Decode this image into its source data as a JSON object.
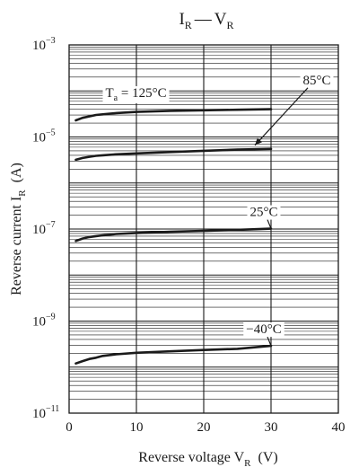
{
  "chart_data": {
    "type": "line",
    "title": {
      "main": "I",
      "main_sub": "R",
      "sep": "—",
      "rest": "V",
      "rest_sub": "R"
    },
    "xlabel": {
      "text": "Reverse voltage  V",
      "sub": "R",
      "unit": "(V)"
    },
    "ylabel": {
      "text": "Reverse current  I",
      "sub": "R",
      "unit": "(A)"
    },
    "xlim": [
      0,
      40
    ],
    "ylim": [
      1e-11,
      0.001
    ],
    "yscale": "log",
    "grid": true,
    "xticks": [
      {
        "value": 0,
        "label": "0"
      },
      {
        "value": 10,
        "label": "10"
      },
      {
        "value": 20,
        "label": "20"
      },
      {
        "value": 30,
        "label": "30"
      },
      {
        "value": 40,
        "label": "40"
      }
    ],
    "yticks": [
      {
        "value": 1e-11,
        "base": "10",
        "exp": "−11"
      },
      {
        "value": 1e-09,
        "base": "10",
        "exp": "−9"
      },
      {
        "value": 1e-07,
        "base": "10",
        "exp": "−7"
      },
      {
        "value": 1e-05,
        "base": "10",
        "exp": "−5"
      },
      {
        "value": 0.001,
        "base": "10",
        "exp": "−3"
      }
    ],
    "series": [
      {
        "name": "125°C",
        "x": [
          1,
          2,
          3,
          4,
          5,
          7,
          10,
          15,
          20,
          25,
          30
        ],
        "y": [
          2.3e-05,
          2.6e-05,
          2.8e-05,
          3e-05,
          3.1e-05,
          3.3e-05,
          3.5e-05,
          3.7e-05,
          3.8e-05,
          3.9e-05,
          4e-05
        ]
      },
      {
        "name": "85°C",
        "x": [
          1,
          2,
          3,
          4,
          5,
          7,
          10,
          15,
          20,
          25,
          30
        ],
        "y": [
          3.2e-06,
          3.5e-06,
          3.7e-06,
          3.9e-06,
          4e-06,
          4.2e-06,
          4.4e-06,
          4.7e-06,
          5e-06,
          5.3e-06,
          5.5e-06
        ]
      },
      {
        "name": "25°C",
        "x": [
          1,
          2,
          3,
          4,
          5,
          7,
          10,
          15,
          20,
          25,
          30
        ],
        "y": [
          5.5e-08,
          6.2e-08,
          6.7e-08,
          7e-08,
          7.3e-08,
          7.8e-08,
          8.2e-08,
          8.7e-08,
          9.1e-08,
          9.6e-08,
          1.02e-07
        ]
      },
      {
        "name": "−40°C",
        "x": [
          1,
          2,
          3,
          4,
          5,
          7,
          10,
          15,
          20,
          25,
          30
        ],
        "y": [
          1.2e-10,
          1.35e-10,
          1.5e-10,
          1.6e-10,
          1.75e-10,
          1.9e-10,
          2.05e-10,
          2.2e-10,
          2.35e-10,
          2.5e-10,
          2.9e-10
        ]
      }
    ],
    "annotations": [
      {
        "series": 0,
        "prefix": "T",
        "prefix_sub": "a",
        "text": " = 125°C"
      },
      {
        "series": 1,
        "text": "85°C",
        "arrow": true
      },
      {
        "series": 2,
        "text": "25°C"
      },
      {
        "series": 3,
        "text": "−40°C"
      }
    ],
    "colors": {
      "line": "#1a1a1a",
      "grid": "#1a1a1a",
      "background": "#ffffff"
    }
  }
}
